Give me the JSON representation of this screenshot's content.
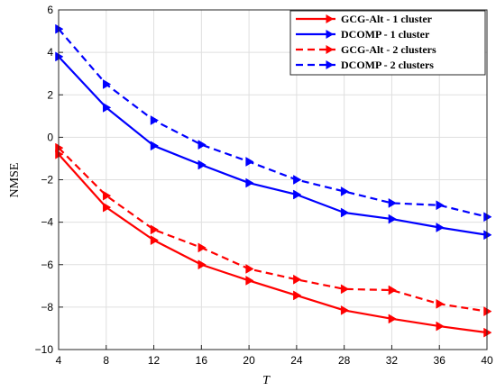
{
  "chart_data": {
    "type": "line",
    "xlabel": "T",
    "ylabel": "NMSE",
    "x": [
      4,
      8,
      12,
      16,
      20,
      24,
      28,
      32,
      36,
      40
    ],
    "xticks": [
      4,
      8,
      12,
      16,
      20,
      24,
      28,
      32,
      36,
      40
    ],
    "yticks": [
      6,
      4,
      2,
      0,
      -2,
      -4,
      -6,
      -8,
      -10
    ],
    "xlim": [
      4,
      40
    ],
    "ylim": [
      -10,
      6
    ],
    "grid": true,
    "legend_position": "top-right",
    "series": [
      {
        "name": "GCG-Alt - 1 cluster",
        "color": "#ff0000",
        "dash": "solid",
        "marker": "triangle-right",
        "values": [
          -0.8,
          -3.3,
          -4.85,
          -6.0,
          -6.75,
          -7.45,
          -8.15,
          -8.55,
          -8.9,
          -9.2
        ]
      },
      {
        "name": "DCOMP - 1 cluster",
        "color": "#0000ff",
        "dash": "solid",
        "marker": "triangle-right",
        "values": [
          3.8,
          1.4,
          -0.4,
          -1.3,
          -2.15,
          -2.7,
          -3.55,
          -3.85,
          -4.25,
          -4.6
        ]
      },
      {
        "name": "GCG-Alt - 2 clusters",
        "color": "#ff0000",
        "dash": "dashed",
        "marker": "triangle-right",
        "values": [
          -0.5,
          -2.75,
          -4.35,
          -5.2,
          -6.2,
          -6.7,
          -7.15,
          -7.2,
          -7.85,
          -8.2
        ]
      },
      {
        "name": "DCOMP - 2 clusters",
        "color": "#0000ff",
        "dash": "dashed",
        "marker": "triangle-right",
        "values": [
          5.1,
          2.5,
          0.8,
          -0.35,
          -1.15,
          -2.0,
          -2.55,
          -3.1,
          -3.2,
          -3.75
        ]
      }
    ]
  }
}
